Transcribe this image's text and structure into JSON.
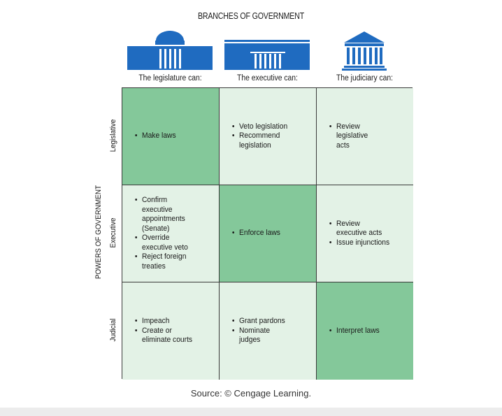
{
  "title": "BRANCHES OF GOVERNMENT",
  "columns": [
    {
      "label": "The legislature can:",
      "icon": "capitol-building-icon"
    },
    {
      "label": "The executive can:",
      "icon": "white-house-icon"
    },
    {
      "label": "The judiciary can:",
      "icon": "supreme-court-icon"
    }
  ],
  "powers_label": "POWERS OF GOVERNMENT",
  "rows": [
    {
      "label": "Legislative"
    },
    {
      "label": "Executive"
    },
    {
      "label": "Judicial"
    }
  ],
  "cells": [
    [
      {
        "items": [
          "Make laws"
        ]
      },
      {
        "items": [
          "Veto legislation",
          "Recommend legislation"
        ]
      },
      {
        "items": [
          "Review legislative acts"
        ]
      }
    ],
    [
      {
        "items": [
          "Confirm executive appointments (Senate)",
          "Override executive veto",
          "Reject foreign treaties"
        ]
      },
      {
        "items": [
          "Enforce laws"
        ]
      },
      {
        "items": [
          "Review executive acts",
          "Issue injunctions"
        ]
      }
    ],
    [
      {
        "items": [
          "Impeach",
          "Create or eliminate courts"
        ]
      },
      {
        "items": [
          "Grant pardons",
          "Nominate judges"
        ]
      },
      {
        "items": [
          "Interpret laws"
        ]
      }
    ]
  ],
  "source": "Source: © Cengage Learning.",
  "colors": {
    "icon": "#1f6bc0",
    "cell_light": "#e3f2e6",
    "cell_dark": "#84c89a",
    "border": "#3a3a3a"
  }
}
